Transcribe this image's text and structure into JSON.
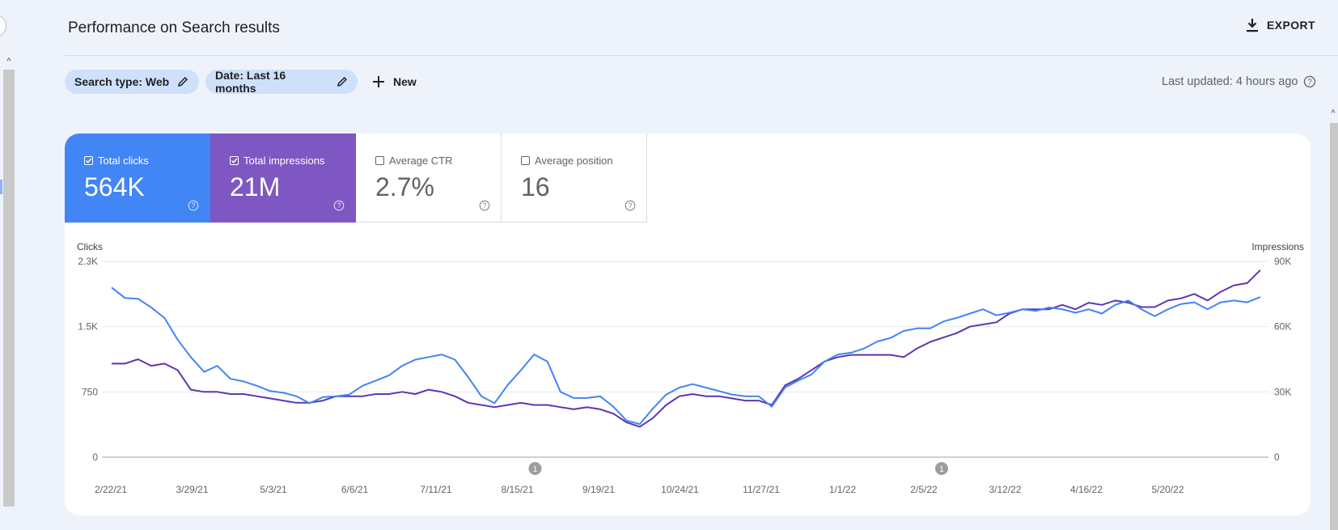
{
  "header": {
    "title": "Performance on Search results",
    "export_label": "EXPORT"
  },
  "filters": {
    "search_type_chip": "Search type: Web",
    "date_chip": "Date: Last 16 months",
    "new_label": "New",
    "last_updated": "Last updated: 4 hours ago"
  },
  "metrics": [
    {
      "label": "Total clicks",
      "value": "564K",
      "checked": true,
      "color": "#4285f4"
    },
    {
      "label": "Total impressions",
      "value": "21M",
      "checked": true,
      "color": "#7e57c2"
    },
    {
      "label": "Average CTR",
      "value": "2.7%",
      "checked": false,
      "color": "#ffffff"
    },
    {
      "label": "Average position",
      "value": "16",
      "checked": false,
      "color": "#ffffff"
    }
  ],
  "colors": {
    "clicks": "#4285f4",
    "impressions": "#5e35b1",
    "background": "#eef3fb",
    "chip": "#cfe0fb"
  },
  "chart_data": {
    "type": "line",
    "y_left_label": "Clicks",
    "y_right_label": "Impressions",
    "y_left_ticks": [
      "0",
      "750",
      "1.5K",
      "2.3K"
    ],
    "y_right_ticks": [
      "0",
      "30K",
      "60K",
      "90K"
    ],
    "y_left_range": [
      0,
      2250
    ],
    "y_right_range": [
      0,
      90000
    ],
    "x_tick_labels": [
      "2/22/21",
      "3/29/21",
      "5/3/21",
      "6/6/21",
      "7/11/21",
      "8/15/21",
      "9/19/21",
      "10/24/21",
      "11/27/21",
      "1/1/22",
      "2/5/22",
      "3/12/22",
      "4/16/22",
      "5/20/22"
    ],
    "annotation_markers": [
      {
        "label": "1",
        "x": "8/15/21"
      },
      {
        "label": "1",
        "x": "2/5/22"
      }
    ],
    "series": [
      {
        "name": "Clicks",
        "axis": "left",
        "values": [
          1950,
          1830,
          1820,
          1720,
          1600,
          1350,
          1150,
          980,
          1050,
          900,
          870,
          820,
          760,
          740,
          700,
          620,
          690,
          700,
          720,
          820,
          880,
          940,
          1050,
          1120,
          1150,
          1180,
          1120,
          920,
          700,
          620,
          830,
          1000,
          1180,
          1100,
          750,
          680,
          680,
          700,
          580,
          420,
          380,
          560,
          720,
          800,
          840,
          800,
          760,
          720,
          700,
          700,
          580,
          800,
          880,
          950,
          1100,
          1180,
          1200,
          1250,
          1330,
          1370,
          1450,
          1480,
          1480,
          1560,
          1600,
          1650,
          1700,
          1630,
          1660,
          1700,
          1680,
          1720,
          1700,
          1660,
          1700,
          1650,
          1750,
          1800,
          1700,
          1620,
          1700,
          1760,
          1780,
          1700,
          1780,
          1800,
          1780,
          1840
        ]
      },
      {
        "name": "Impressions",
        "axis": "right",
        "values": [
          43000,
          43000,
          45000,
          42000,
          43000,
          40000,
          31000,
          30000,
          30000,
          29000,
          29000,
          28000,
          27000,
          26000,
          25000,
          25000,
          26000,
          28000,
          28000,
          28000,
          29000,
          29000,
          30000,
          29000,
          31000,
          30000,
          28000,
          25000,
          24000,
          23000,
          24000,
          25000,
          24000,
          24000,
          23000,
          22000,
          23000,
          22000,
          20000,
          16000,
          14000,
          18000,
          24000,
          28000,
          29000,
          28000,
          28000,
          27000,
          26000,
          26000,
          24000,
          33000,
          36000,
          40000,
          44000,
          46000,
          47000,
          47000,
          47000,
          47000,
          46000,
          50000,
          53000,
          55000,
          57000,
          60000,
          61000,
          62000,
          66000,
          68000,
          68000,
          68000,
          70000,
          68000,
          71000,
          70000,
          72000,
          71000,
          69000,
          69000,
          72000,
          73000,
          75000,
          72000,
          76000,
          79000,
          80000,
          86000
        ]
      }
    ]
  }
}
